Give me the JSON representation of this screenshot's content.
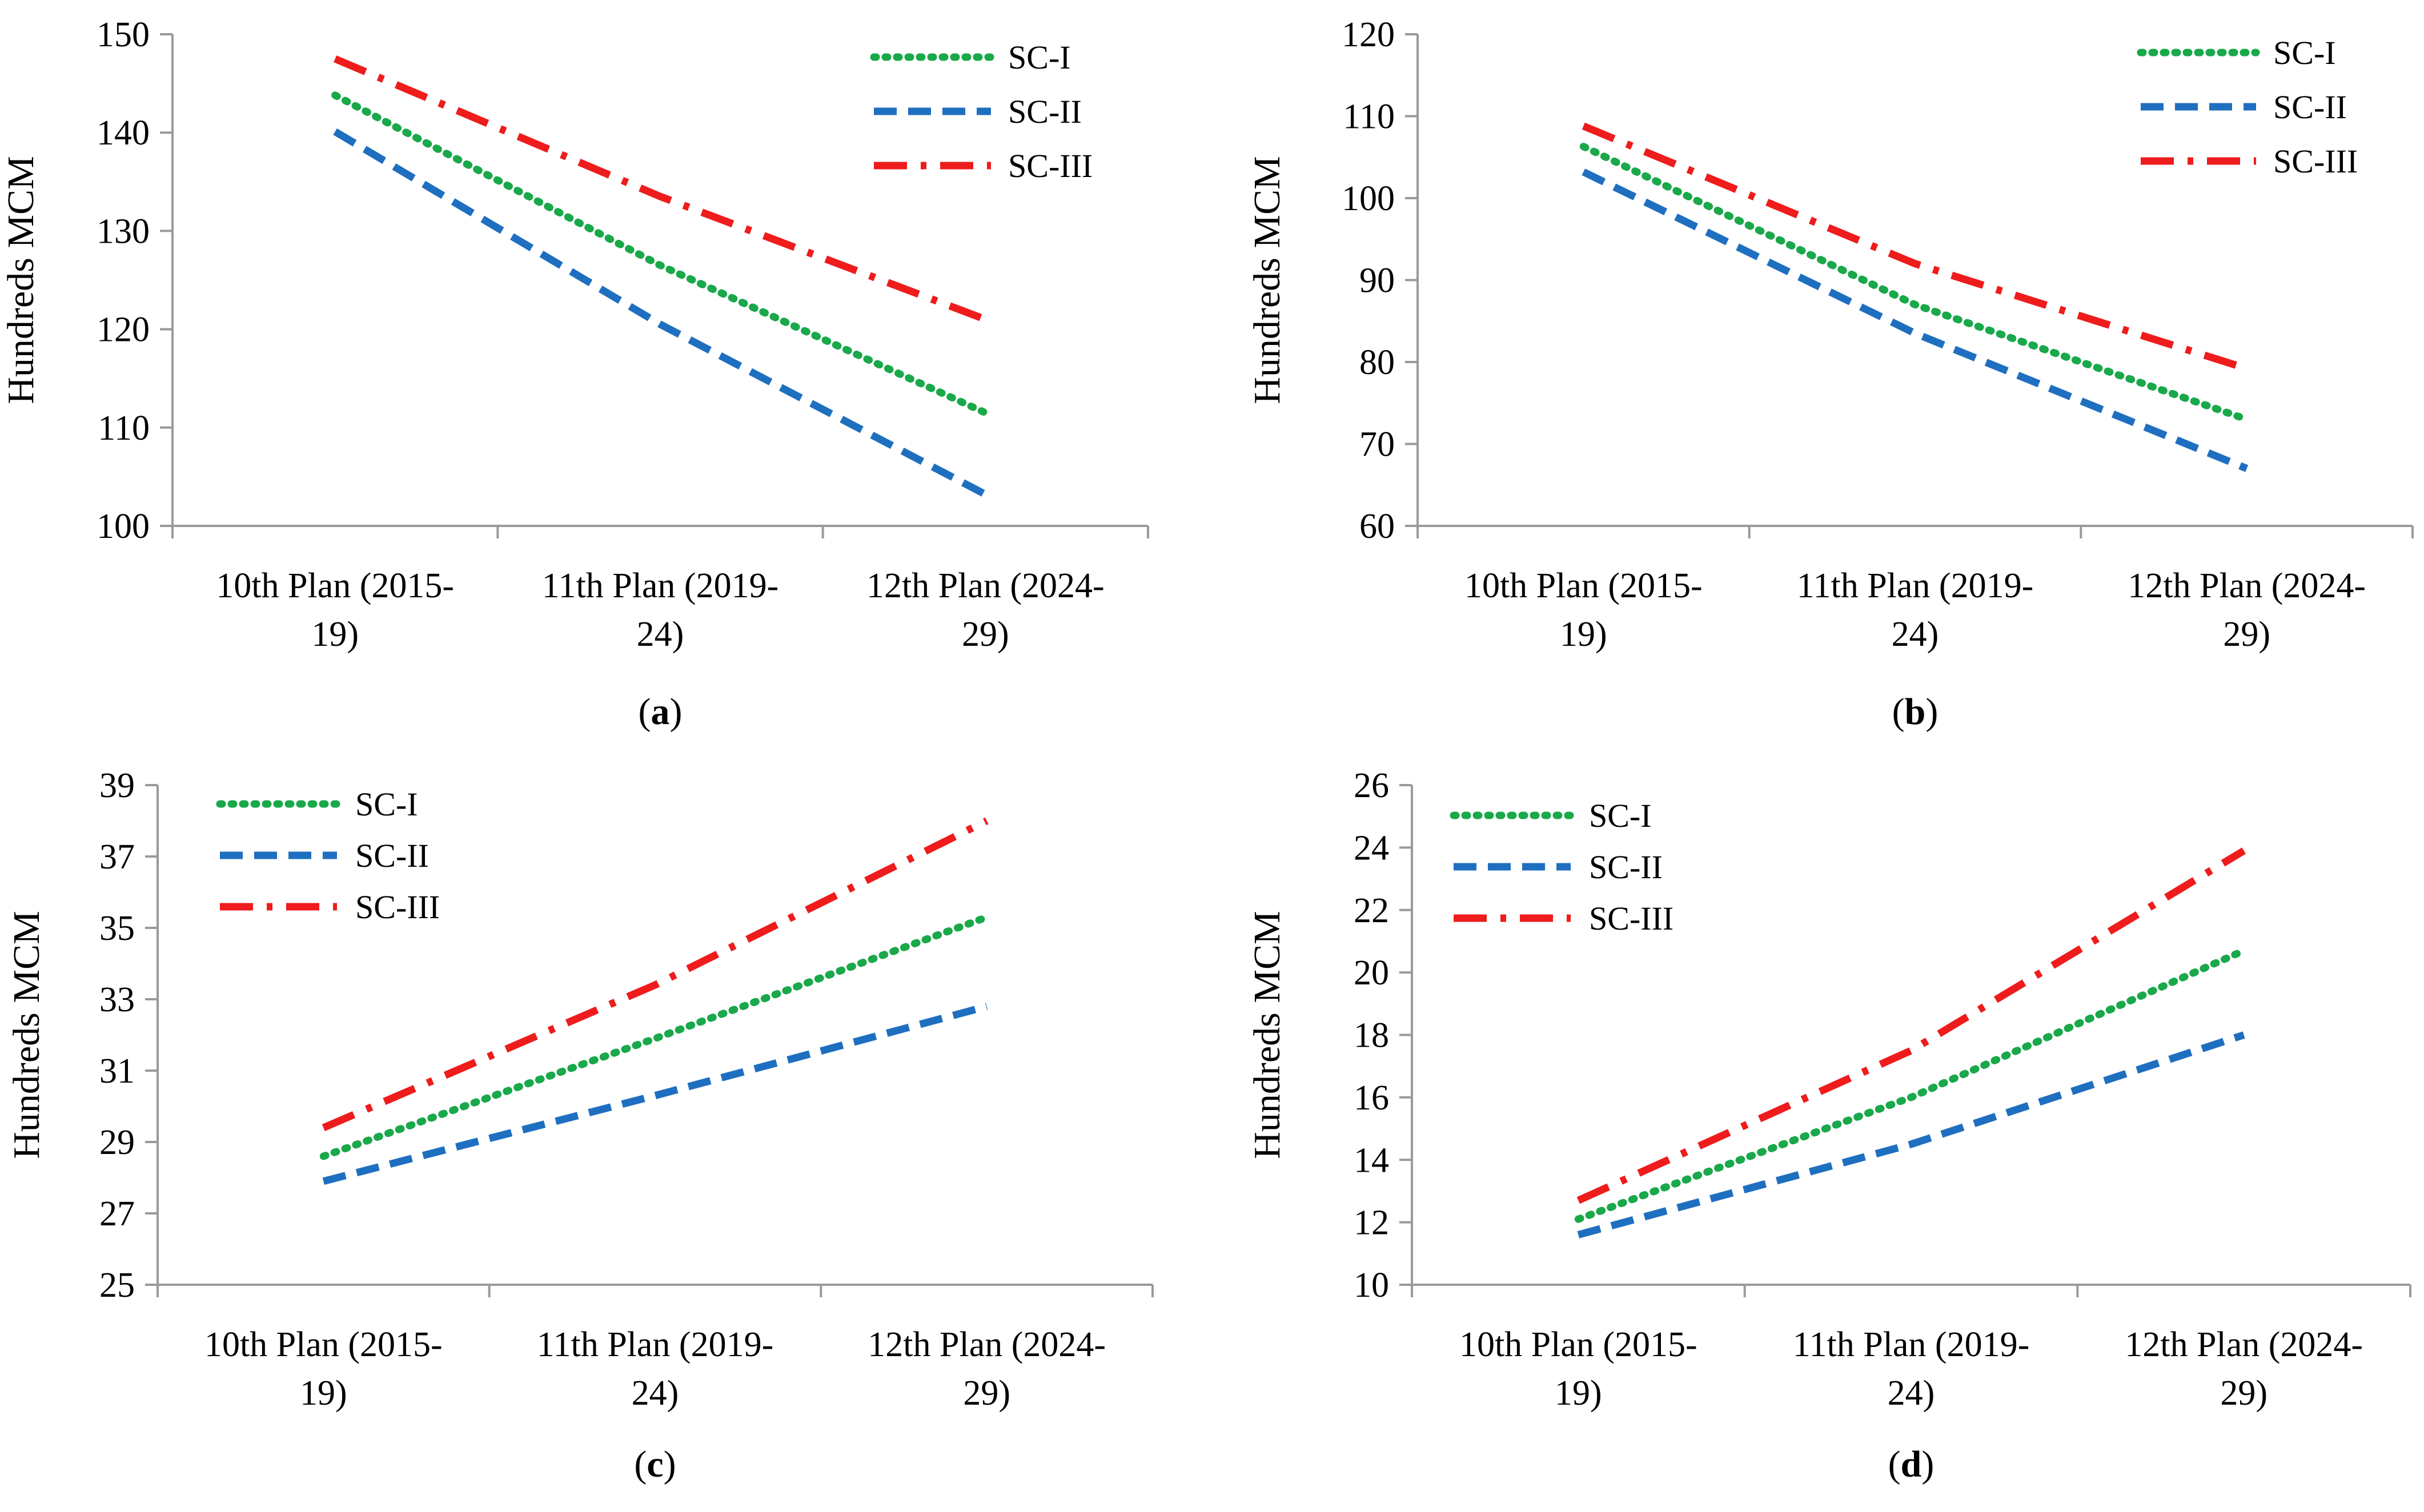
{
  "colors": {
    "SC-I": "#19a84a",
    "SC-II": "#1f6fc0",
    "SC-III": "#ee1c1c",
    "axis": "#9a9a9a"
  },
  "chart_data": [
    {
      "type": "line",
      "panel": "a",
      "panel_label": "a",
      "ylabel": "Hundreds MCM",
      "ylim": [
        100,
        150
      ],
      "yticks": [
        100,
        110,
        120,
        130,
        140,
        150
      ],
      "categories": [
        [
          "10th Plan (2015-",
          "19)"
        ],
        [
          "11th Plan (2019-",
          "24)"
        ],
        [
          "12th Plan (2024-",
          "29)"
        ]
      ],
      "legend_position": "top-right",
      "series": [
        {
          "name": "SC-I",
          "style": "dotted",
          "values": [
            143.8,
            126.5,
            111.5
          ]
        },
        {
          "name": "SC-II",
          "style": "dashed",
          "values": [
            140.1,
            120.5,
            103.2
          ]
        },
        {
          "name": "SC-III",
          "style": "dashdot",
          "values": [
            147.5,
            133.5,
            121.0
          ]
        }
      ]
    },
    {
      "type": "line",
      "panel": "b",
      "panel_label": "b",
      "ylabel": "Hundreds MCM",
      "ylim": [
        60,
        120
      ],
      "yticks": [
        60,
        70,
        80,
        90,
        100,
        110,
        120
      ],
      "categories": [
        [
          "10th Plan (2015-",
          "19)"
        ],
        [
          "11th Plan (2019-",
          "24)"
        ],
        [
          "12th Plan (2024-",
          "29)"
        ]
      ],
      "legend_position": "top-right",
      "series": [
        {
          "name": "SC-I",
          "style": "dotted",
          "values": [
            106.3,
            87.0,
            73.0
          ]
        },
        {
          "name": "SC-II",
          "style": "dashed",
          "values": [
            103.2,
            83.5,
            67.0
          ]
        },
        {
          "name": "SC-III",
          "style": "dashdot",
          "values": [
            108.8,
            92.0,
            79.2
          ]
        }
      ]
    },
    {
      "type": "line",
      "panel": "c",
      "panel_label": "c",
      "ylabel": "Hundreds MCM",
      "ylim": [
        25,
        39
      ],
      "yticks": [
        25,
        27,
        29,
        31,
        33,
        35,
        37,
        39
      ],
      "categories": [
        [
          "10th Plan (2015-",
          "19)"
        ],
        [
          "11th Plan (2019-",
          "24)"
        ],
        [
          "12th Plan (2024-",
          "29)"
        ]
      ],
      "legend_position": "top-left",
      "series": [
        {
          "name": "SC-I",
          "style": "dotted",
          "values": [
            28.6,
            31.9,
            35.3
          ]
        },
        {
          "name": "SC-II",
          "style": "dashed",
          "values": [
            27.9,
            30.3,
            32.8
          ]
        },
        {
          "name": "SC-III",
          "style": "dashdot",
          "values": [
            29.4,
            33.4,
            38.0
          ]
        }
      ]
    },
    {
      "type": "line",
      "panel": "d",
      "panel_label": "d",
      "ylabel": "Hundreds MCM",
      "ylim": [
        10,
        26
      ],
      "yticks": [
        10,
        12,
        14,
        16,
        18,
        20,
        22,
        24,
        26
      ],
      "categories": [
        [
          "10th Plan (2015-",
          "19)"
        ],
        [
          "11th Plan (2019-",
          "24)"
        ],
        [
          "12th Plan (2024-",
          "29)"
        ]
      ],
      "legend_position": "top-left",
      "series": [
        {
          "name": "SC-I",
          "style": "dotted",
          "values": [
            12.1,
            16.0,
            20.7
          ]
        },
        {
          "name": "SC-II",
          "style": "dashed",
          "values": [
            11.6,
            14.5,
            18.0
          ]
        },
        {
          "name": "SC-III",
          "style": "dashdot",
          "values": [
            12.7,
            17.5,
            23.9
          ]
        }
      ]
    }
  ]
}
